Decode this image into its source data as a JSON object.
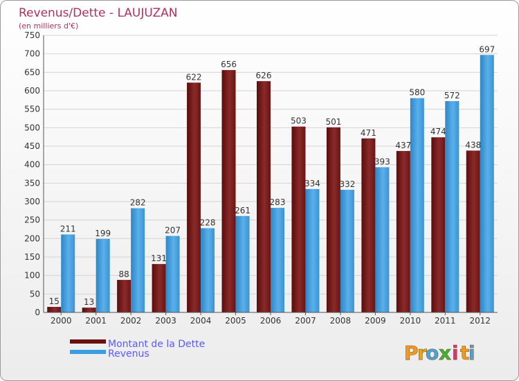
{
  "chart_data": {
    "type": "bar",
    "title": "Revenus/Dette - LAUJUZAN",
    "subtitle": "(en milliers d'€)",
    "categories": [
      "2000",
      "2001",
      "2002",
      "2003",
      "2004",
      "2005",
      "2006",
      "2007",
      "2008",
      "2009",
      "2010",
      "2011",
      "2012"
    ],
    "series": [
      {
        "name": "Montant de la Dette",
        "color": "#7a1e1e",
        "values": [
          15,
          13,
          88,
          131,
          622,
          656,
          626,
          503,
          501,
          471,
          437,
          474,
          438
        ]
      },
      {
        "name": "Revenus",
        "color": "#4aa3df",
        "values": [
          211,
          199,
          282,
          207,
          228,
          261,
          283,
          334,
          332,
          393,
          580,
          572,
          697
        ]
      }
    ],
    "yticks": [
      0,
      50,
      100,
      150,
      200,
      250,
      300,
      350,
      400,
      450,
      500,
      550,
      600,
      650,
      700,
      750
    ],
    "ylim": [
      0,
      750
    ],
    "xlabel": "",
    "ylabel": "",
    "grid": true,
    "legend_position": "bottom-left"
  },
  "brand": {
    "name": "Proxiti",
    "letters": [
      "P",
      "r",
      "o",
      "x",
      "i",
      "t",
      "i"
    ]
  }
}
